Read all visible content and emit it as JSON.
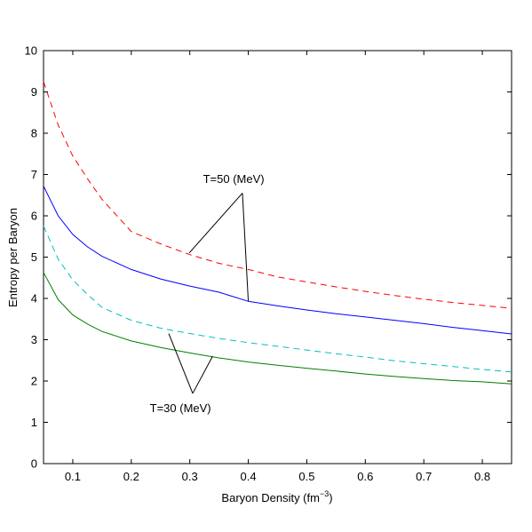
{
  "chart_data": {
    "type": "line",
    "xlabel": "Baryon Density (fm",
    "xlabel_sup": "−3",
    "xlabel_end": ")",
    "ylabel": "Entropy per Baryon",
    "xlim": [
      0.05,
      0.85
    ],
    "ylim": [
      0,
      10
    ],
    "xticks": [
      0.1,
      0.2,
      0.3,
      0.4,
      0.5,
      0.6,
      0.7,
      0.8
    ],
    "xtick_labels": [
      "0.1",
      "0.2",
      "0.3",
      "0.4",
      "0.5",
      "0.6",
      "0.7",
      "0.8"
    ],
    "yticks": [
      0,
      1,
      2,
      3,
      4,
      5,
      6,
      7,
      8,
      9,
      10
    ],
    "ytick_labels": [
      "0",
      "1",
      "2",
      "3",
      "4",
      "5",
      "6",
      "7",
      "8",
      "9",
      "10"
    ],
    "grid": false,
    "series": [
      {
        "color": "#ff0000",
        "dash": "dashed",
        "x": [
          0.05,
          0.075,
          0.1,
          0.125,
          0.15,
          0.2,
          0.25,
          0.3,
          0.35,
          0.4,
          0.45,
          0.5,
          0.55,
          0.6,
          0.65,
          0.7,
          0.75,
          0.8,
          0.85
        ],
        "y": [
          9.25,
          8.2,
          7.45,
          6.9,
          6.4,
          5.62,
          5.32,
          5.06,
          4.85,
          4.7,
          4.52,
          4.4,
          4.28,
          4.17,
          4.07,
          3.98,
          3.9,
          3.83,
          3.76
        ]
      },
      {
        "color": "#0000ff",
        "dash": "solid",
        "x": [
          0.05,
          0.075,
          0.1,
          0.125,
          0.15,
          0.2,
          0.25,
          0.3,
          0.35,
          0.4,
          0.45,
          0.5,
          0.55,
          0.6,
          0.65,
          0.7,
          0.75,
          0.8,
          0.85
        ],
        "y": [
          6.72,
          6.0,
          5.55,
          5.25,
          5.02,
          4.7,
          4.47,
          4.3,
          4.15,
          3.93,
          3.82,
          3.72,
          3.63,
          3.55,
          3.47,
          3.39,
          3.3,
          3.22,
          3.14
        ]
      },
      {
        "color": "#00bfbf",
        "dash": "dashed",
        "x": [
          0.05,
          0.075,
          0.1,
          0.125,
          0.15,
          0.2,
          0.25,
          0.3,
          0.35,
          0.4,
          0.45,
          0.5,
          0.55,
          0.6,
          0.65,
          0.7,
          0.75,
          0.8,
          0.85
        ],
        "y": [
          5.75,
          4.95,
          4.45,
          4.1,
          3.78,
          3.47,
          3.28,
          3.15,
          3.03,
          2.93,
          2.84,
          2.75,
          2.66,
          2.58,
          2.49,
          2.42,
          2.35,
          2.28,
          2.22
        ]
      },
      {
        "color": "#008000",
        "dash": "solid",
        "x": [
          0.05,
          0.075,
          0.1,
          0.125,
          0.15,
          0.2,
          0.25,
          0.3,
          0.35,
          0.4,
          0.45,
          0.5,
          0.55,
          0.6,
          0.65,
          0.7,
          0.75,
          0.8,
          0.85
        ],
        "y": [
          4.63,
          3.97,
          3.6,
          3.38,
          3.2,
          2.97,
          2.81,
          2.68,
          2.56,
          2.46,
          2.38,
          2.31,
          2.24,
          2.17,
          2.11,
          2.06,
          2.01,
          1.98,
          1.93
        ]
      }
    ],
    "annotations": [
      {
        "text": "T=50 (MeV)",
        "text_x": 0.375,
        "text_y": 6.8,
        "pointers": [
          [
            0.299,
            5.1
          ],
          [
            0.4,
            3.93
          ]
        ],
        "apex": [
          0.39,
          6.55
        ]
      },
      {
        "text": "T=30 (MeV)",
        "text_x": 0.284,
        "text_y": 1.25,
        "pointers": [
          [
            0.264,
            3.15
          ],
          [
            0.339,
            2.6
          ]
        ],
        "apex": [
          0.305,
          1.7
        ]
      }
    ]
  }
}
